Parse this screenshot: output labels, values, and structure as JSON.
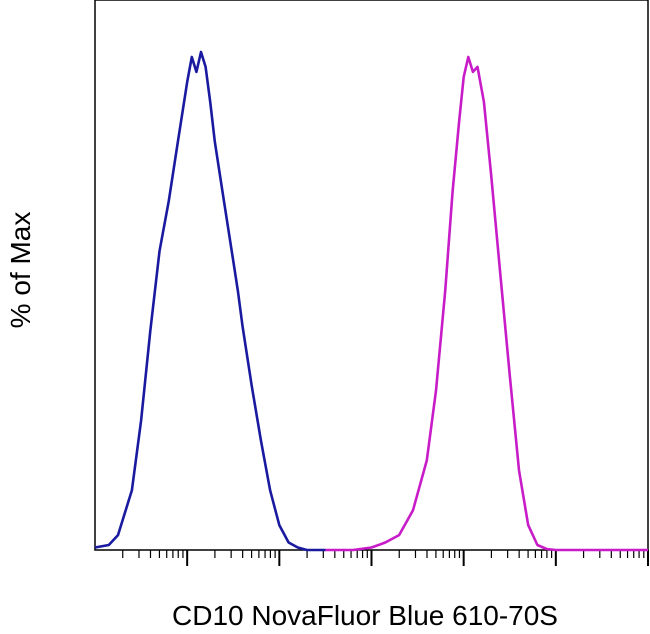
{
  "chart_data": {
    "type": "line",
    "title": "",
    "xlabel": "CD10 NovaFluor Blue 610-70S",
    "ylabel": "% of Max",
    "x_scale": "log",
    "xlim": [
      -1,
      5
    ],
    "ylim": [
      0,
      100
    ],
    "grid": false,
    "legend": "none",
    "series": [
      {
        "color": "#1a1aa0",
        "x": [
          -1.0,
          -0.85,
          -0.75,
          -0.6,
          -0.5,
          -0.4,
          -0.3,
          -0.2,
          -0.1,
          0.0,
          0.05,
          0.1,
          0.15,
          0.2,
          0.25,
          0.3,
          0.4,
          0.5,
          0.55,
          0.6,
          0.7,
          0.8,
          0.9,
          1.0,
          1.1,
          1.2,
          1.3,
          1.5
        ],
        "y": [
          0.5,
          1,
          3,
          12,
          26,
          44,
          60,
          70,
          82,
          94,
          99,
          96,
          100,
          97,
          90,
          82,
          70,
          58,
          52,
          45,
          33,
          22,
          12,
          5,
          1.5,
          0.5,
          0,
          0
        ]
      },
      {
        "color": "#c81cc8",
        "x": [
          1.5,
          1.8,
          2.0,
          2.15,
          2.3,
          2.45,
          2.6,
          2.7,
          2.8,
          2.88,
          2.95,
          3.0,
          3.05,
          3.1,
          3.15,
          3.22,
          3.3,
          3.4,
          3.5,
          3.6,
          3.7,
          3.8,
          3.9,
          4.0,
          4.5,
          5.0
        ],
        "y": [
          0,
          0,
          0.5,
          1.5,
          3,
          8,
          18,
          32,
          52,
          72,
          86,
          95,
          99,
          96,
          97,
          90,
          75,
          55,
          35,
          16,
          5,
          1,
          0.2,
          0,
          0,
          0
        ]
      }
    ],
    "x_major_ticks": [
      0,
      1,
      2,
      3,
      4,
      5
    ],
    "colors": {
      "series_1": "#1a1aa0",
      "series_2": "#c81cc8",
      "axis": "#000000"
    }
  }
}
